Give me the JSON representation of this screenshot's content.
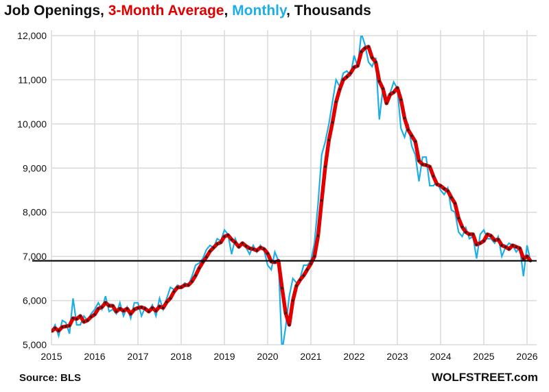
{
  "chart_data": {
    "type": "line",
    "title_parts": [
      "Job Openings, ",
      "3-Month Average",
      ", ",
      "Monthly",
      ", Thousands"
    ],
    "series": [
      {
        "name": "3-Month Average",
        "color": "#e00000",
        "derived_from": "Monthly"
      },
      {
        "name": "Monthly",
        "color": "#1eaee6"
      }
    ],
    "x_start": "2015-01",
    "monthly": [
      5300,
      5450,
      5200,
      5550,
      5500,
      5250,
      6050,
      5450,
      5450,
      5650,
      5550,
      5700,
      5800,
      5950,
      5800,
      6100,
      5750,
      5800,
      5700,
      5950,
      5650,
      5850,
      5600,
      5950,
      5950,
      5650,
      5850,
      5750,
      5900,
      5650,
      6050,
      5800,
      6050,
      6300,
      6250,
      6350,
      6300,
      6400,
      6350,
      6550,
      6800,
      6850,
      6950,
      7150,
      7250,
      7200,
      7400,
      7350,
      7600,
      7500,
      7050,
      7400,
      7200,
      7300,
      7200,
      7050,
      7250,
      7100,
      7250,
      7150,
      6800,
      6700,
      7100,
      6900,
      4850,
      5400,
      6100,
      6500,
      6400,
      6500,
      6800,
      6800,
      6900,
      7300,
      8200,
      9300,
      9600,
      10000,
      10500,
      11000,
      10850,
      11150,
      11200,
      11100,
      11550,
      11300,
      12050,
      11800,
      11400,
      11300,
      11500,
      10100,
      10800,
      10500,
      10700,
      10950,
      10800,
      9900,
      9700,
      10000,
      9500,
      9300,
      8700,
      9250,
      9250,
      8600,
      8600,
      8700,
      8500,
      8400,
      8550,
      8050,
      8000,
      7550,
      7450,
      7650,
      7400,
      7450,
      6950,
      7500,
      7600,
      7400,
      7400,
      7300,
      7450,
      7000,
      7200,
      7300,
      7250,
      7100,
      7200,
      6550,
      7250,
      6880
    ],
    "reference_line": 6900,
    "xlim": [
      2015,
      2026
    ],
    "ylim": [
      5000,
      12000
    ],
    "x_ticks": [
      "2015",
      "2016",
      "2017",
      "2018",
      "2019",
      "2020",
      "2021",
      "2022",
      "2023",
      "2024",
      "2025",
      "2026"
    ],
    "y_ticks": [
      "5,000",
      "6,000",
      "7,000",
      "8,000",
      "9,000",
      "10,000",
      "11,000",
      "12,000"
    ],
    "grid": true,
    "legend": "in title"
  },
  "footer": {
    "source": "Source: BLS",
    "brand": "WOLFSTREET.com"
  }
}
